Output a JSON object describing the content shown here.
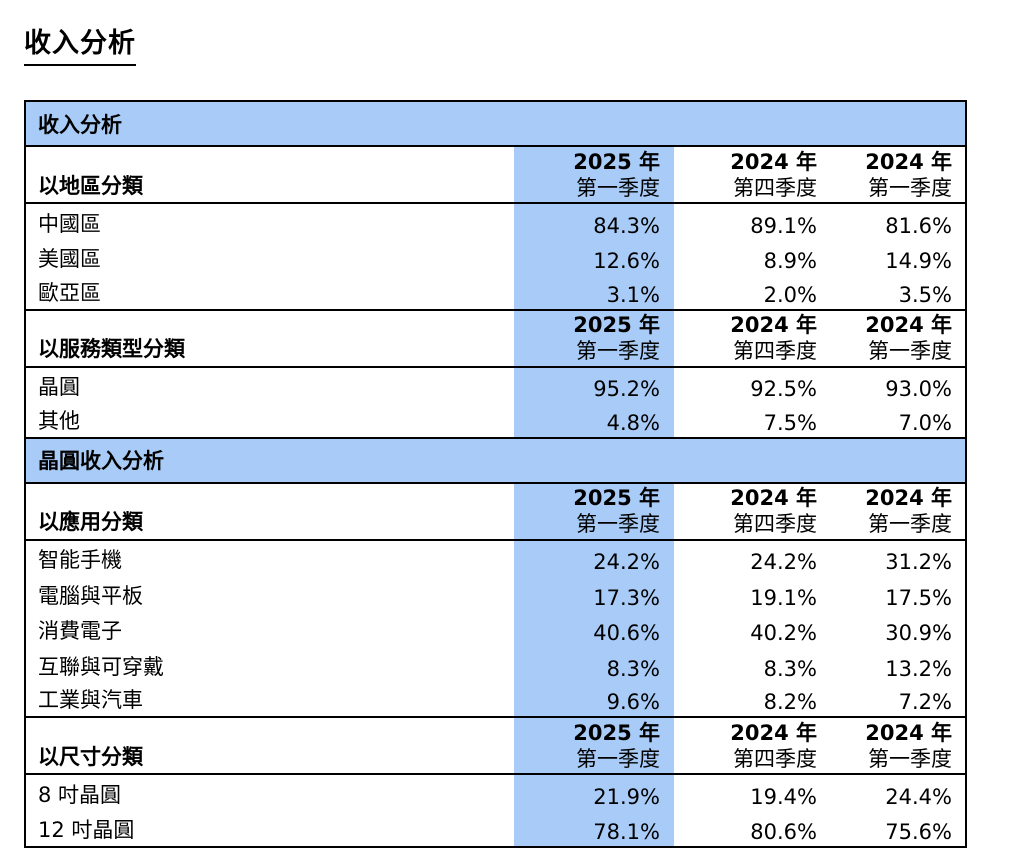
{
  "page_title": "收入分析",
  "column_headers": {
    "q1_2025": {
      "year": "2025 年",
      "quarter": "第一季度"
    },
    "q4_2024": {
      "year": "2024 年",
      "quarter": "第四季度"
    },
    "q1_2024": {
      "year": "2024 年",
      "quarter": "第一季度"
    }
  },
  "sections": [
    {
      "band_title": "收入分析",
      "groups": [
        {
          "label": "以地區分類",
          "rows": [
            {
              "label": "中國區",
              "q1_2025": "84.3%",
              "q4_2024": "89.1%",
              "q1_2024": "81.6%"
            },
            {
              "label": "美國區",
              "q1_2025": "12.6%",
              "q4_2024": "8.9%",
              "q1_2024": "14.9%"
            },
            {
              "label": "歐亞區",
              "q1_2025": "3.1%",
              "q4_2024": "2.0%",
              "q1_2024": "3.5%"
            }
          ]
        },
        {
          "label": "以服務類型分類",
          "rows": [
            {
              "label": "晶圓",
              "q1_2025": "95.2%",
              "q4_2024": "92.5%",
              "q1_2024": "93.0%"
            },
            {
              "label": "其他",
              "q1_2025": "4.8%",
              "q4_2024": "7.5%",
              "q1_2024": "7.0%"
            }
          ]
        }
      ]
    },
    {
      "band_title": "晶圓收入分析",
      "groups": [
        {
          "label": "以應用分類",
          "rows": [
            {
              "label": "智能手機",
              "q1_2025": "24.2%",
              "q4_2024": "24.2%",
              "q1_2024": "31.2%"
            },
            {
              "label": "電腦與平板",
              "q1_2025": "17.3%",
              "q4_2024": "19.1%",
              "q1_2024": "17.5%"
            },
            {
              "label": "消費電子",
              "q1_2025": "40.6%",
              "q4_2024": "40.2%",
              "q1_2024": "30.9%"
            },
            {
              "label": "互聯與可穿戴",
              "q1_2025": "8.3%",
              "q4_2024": "8.3%",
              "q1_2024": "13.2%"
            },
            {
              "label": "工業與汽車",
              "q1_2025": "9.6%",
              "q4_2024": "8.2%",
              "q1_2024": "7.2%"
            }
          ]
        },
        {
          "label": "以尺寸分類",
          "rows": [
            {
              "label": "8 吋晶圓",
              "q1_2025": "21.9%",
              "q4_2024": "19.4%",
              "q1_2024": "24.4%"
            },
            {
              "label": "12 吋晶圓",
              "q1_2025": "78.1%",
              "q4_2024": "80.6%",
              "q1_2024": "75.6%"
            }
          ]
        }
      ]
    }
  ],
  "colors": {
    "highlight": "#a8cbf7",
    "border": "#000000"
  }
}
